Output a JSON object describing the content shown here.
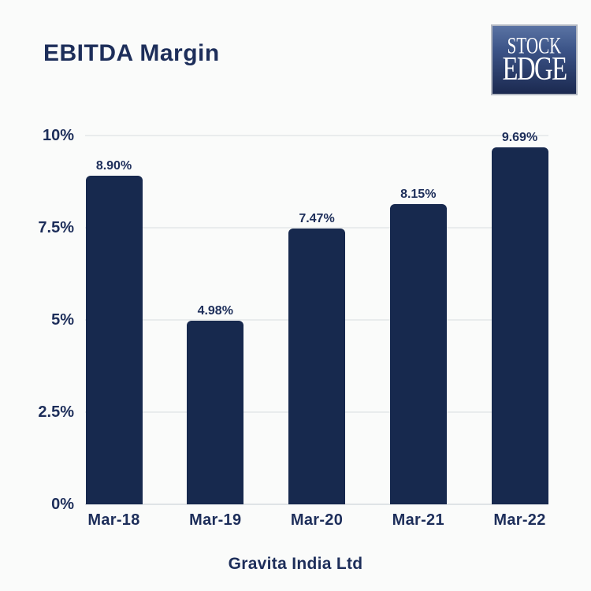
{
  "header": {
    "title": "EBITDA Margin"
  },
  "logo": {
    "line1": "STOCK",
    "line2": "EDGE"
  },
  "footer": {
    "company": "Gravita India Ltd"
  },
  "colors": {
    "background": "#fafbfa",
    "text_navy": "#1d2e5a",
    "bar_navy": "#17294e",
    "gridline": "#e9eced",
    "zero_line": "#dfe3e6",
    "logo_gradient_top": "#5a73a3",
    "logo_gradient_bottom": "#1b2950",
    "logo_border": "#b3b8c2"
  },
  "chart_data": {
    "type": "bar",
    "title": "EBITDA Margin",
    "categories": [
      "Mar-18",
      "Mar-19",
      "Mar-20",
      "Mar-21",
      "Mar-22"
    ],
    "values": [
      8.9,
      4.98,
      7.47,
      8.15,
      9.69
    ],
    "value_labels": [
      "8.90%",
      "4.98%",
      "7.47%",
      "8.15%",
      "9.69%"
    ],
    "y_ticks": [
      {
        "value": 10,
        "label": "10%"
      },
      {
        "value": 7.5,
        "label": "7.5%"
      },
      {
        "value": 5,
        "label": "5%"
      },
      {
        "value": 2.5,
        "label": "2.5%"
      },
      {
        "value": 0,
        "label": "0%"
      }
    ],
    "ylim": [
      0,
      10
    ],
    "xlabel": "Gravita India Ltd",
    "ylabel": "",
    "grid": true,
    "legend": "none",
    "bar_color": "#17294e"
  }
}
